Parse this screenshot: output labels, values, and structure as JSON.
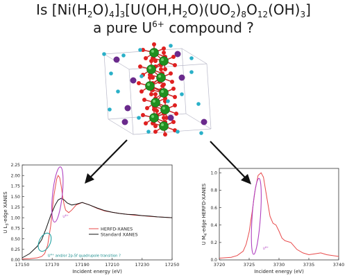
{
  "title": {
    "line1_parts": [
      "Is [Ni(H",
      "2",
      "O)",
      "4",
      "]",
      "3",
      "[U(OH,H",
      "2",
      "O)(UO",
      "2",
      ")",
      "8",
      "O",
      "12",
      "(OH)",
      "3",
      "]"
    ],
    "line2_prefix": "a pure U",
    "line2_sup": "6+",
    "line2_suffix": " compound ?"
  },
  "colors": {
    "uranium": "#1f8f1f",
    "oxygen": "#e02020",
    "nickel": "#6a2a8c",
    "hydrogen": "#2ab0c8",
    "herfd": "#e8494a",
    "standard": "#111111",
    "ellipse_u6": "#b040c0",
    "ellipse_u4": "#20a0a0"
  },
  "chart_data": [
    {
      "type": "line",
      "xlabel": "Incident energy (eV)",
      "ylabel_prefix": "U L",
      "ylabel_sub": "3",
      "ylabel_suffix": "-edge XANES",
      "xlim": [
        17150,
        17250
      ],
      "ylim": [
        0,
        2.25
      ],
      "xticks": [
        "17150",
        "17170",
        "17190",
        "17210",
        "17230",
        "17250"
      ],
      "yticks": [
        "0.00",
        "0.25",
        "0.50",
        "0.75",
        "1.00",
        "1.25",
        "1.50",
        "1.75",
        "2.00",
        "2.25"
      ],
      "legend": [
        "HERFD-XANES",
        "Standard XANES"
      ],
      "legend_position": "center-right",
      "annotation_u6": "U",
      "annotation_u6_sup": "6+",
      "annotation_u4": "U",
      "annotation_u4_sup": "4+",
      "annotation_u4_suffix": " and/or 2p-5f quadrupole transition ?",
      "series": [
        {
          "name": "HERFD-XANES",
          "x": [
            17150,
            17155,
            17160,
            17163,
            17165,
            17167,
            17169,
            17171,
            17173,
            17174,
            17175,
            17176,
            17177,
            17178,
            17179,
            17181,
            17183,
            17186,
            17190,
            17195,
            17200,
            17205,
            17210,
            17215,
            17220,
            17225,
            17230,
            17235,
            17240,
            17245,
            17250
          ],
          "y": [
            0.02,
            0.03,
            0.05,
            0.08,
            0.15,
            0.35,
            0.8,
            1.5,
            1.92,
            2.0,
            1.95,
            1.75,
            1.5,
            1.3,
            1.18,
            1.12,
            1.18,
            1.3,
            1.36,
            1.3,
            1.22,
            1.16,
            1.13,
            1.1,
            1.08,
            1.06,
            1.05,
            1.03,
            1.02,
            1.01,
            1.0
          ]
        },
        {
          "name": "Standard XANES",
          "x": [
            17150,
            17155,
            17160,
            17163,
            17166,
            17169,
            17172,
            17174,
            17176,
            17178,
            17180,
            17183,
            17186,
            17190,
            17195,
            17200,
            17205,
            17210,
            17215,
            17220,
            17225,
            17230,
            17235,
            17240,
            17245,
            17250
          ],
          "y": [
            0.05,
            0.15,
            0.32,
            0.48,
            0.75,
            1.05,
            1.3,
            1.42,
            1.46,
            1.42,
            1.35,
            1.3,
            1.32,
            1.36,
            1.3,
            1.23,
            1.17,
            1.13,
            1.1,
            1.08,
            1.07,
            1.05,
            1.04,
            1.02,
            1.01,
            1.0
          ]
        }
      ]
    },
    {
      "type": "line",
      "xlabel": "Incident energy (eV)",
      "ylabel_prefix": "U M",
      "ylabel_sub": "4",
      "ylabel_suffix": "-edge HERFD-XANES",
      "xlim": [
        3720,
        3740
      ],
      "ylim": [
        0,
        1.05
      ],
      "xticks": [
        "3720",
        "3725",
        "3730",
        "3735",
        "3740"
      ],
      "yticks": [
        "0.0",
        "0.2",
        "0.4",
        "0.6",
        "0.8",
        "1.0"
      ],
      "annotation_u6": "U",
      "annotation_u6_sup": "6+",
      "series": [
        {
          "name": "HERFD-XANES",
          "x": [
            3720,
            3722,
            3723,
            3724,
            3724.5,
            3725,
            3725.5,
            3726,
            3726.5,
            3727,
            3727.4,
            3728,
            3728.5,
            3729,
            3729.5,
            3730,
            3730.5,
            3731,
            3731.5,
            3732,
            3733,
            3734,
            3735,
            3736,
            3737,
            3738,
            3739,
            3740
          ],
          "y": [
            0.02,
            0.03,
            0.05,
            0.1,
            0.18,
            0.32,
            0.55,
            0.8,
            0.97,
            1.0,
            0.95,
            0.7,
            0.5,
            0.42,
            0.4,
            0.33,
            0.25,
            0.22,
            0.21,
            0.2,
            0.12,
            0.08,
            0.06,
            0.07,
            0.08,
            0.06,
            0.05,
            0.04
          ]
        }
      ]
    }
  ]
}
